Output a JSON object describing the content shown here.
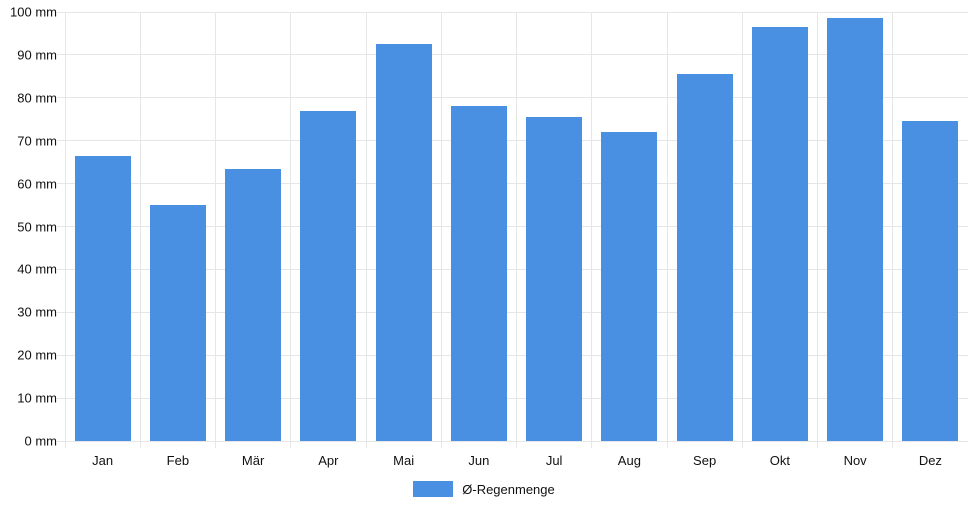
{
  "chart_data": {
    "type": "bar",
    "title": "",
    "xlabel": "",
    "ylabel": "",
    "unit": "mm",
    "categories": [
      "Jan",
      "Feb",
      "Mär",
      "Apr",
      "Mai",
      "Jun",
      "Jul",
      "Aug",
      "Sep",
      "Okt",
      "Nov",
      "Dez"
    ],
    "series": [
      {
        "name": "Ø-Regenmenge",
        "values": [
          66.5,
          55,
          63.5,
          77,
          92.5,
          78,
          75.5,
          72,
          85.5,
          96.5,
          98.5,
          74.5
        ],
        "color": "#4A90E2"
      }
    ],
    "ylim": [
      0,
      100
    ],
    "y_tick_step": 10,
    "y_tick_labels": [
      "0 mm",
      "10 mm",
      "20 mm",
      "30 mm",
      "40 mm",
      "50 mm",
      "60 mm",
      "70 mm",
      "80 mm",
      "90 mm",
      "100 mm"
    ],
    "grid": true,
    "legend_position": "bottom"
  },
  "colors": {
    "gridline": "#e6e6e6",
    "axis_text": "#111111",
    "background": "#ffffff"
  }
}
